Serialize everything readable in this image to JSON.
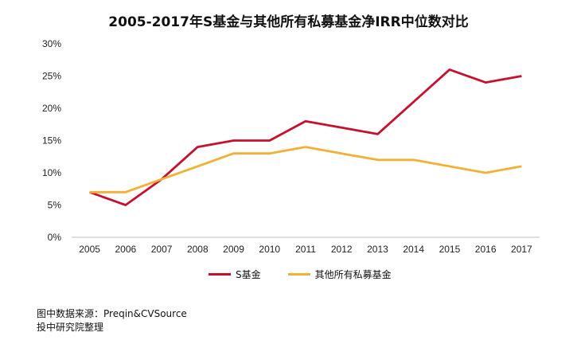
{
  "title": "2005-2017年S基金与其他所有私募基金净IRR中位数对比",
  "chart_data": {
    "type": "line",
    "title": "2005-2017年S基金与其他所有私募基金净IRR中位数对比",
    "xlabel": "",
    "ylabel": "",
    "categories": [
      "2005",
      "2006",
      "2007",
      "2008",
      "2009",
      "2010",
      "2011",
      "2012",
      "2013",
      "2014",
      "2015",
      "2016",
      "2017"
    ],
    "ylim": [
      0,
      30
    ],
    "yticks": [
      "0%",
      "5%",
      "10%",
      "15%",
      "20%",
      "25%",
      "30%"
    ],
    "grid": false,
    "legend_position": "bottom",
    "series": [
      {
        "name": "S基金",
        "color": "#c8102e",
        "values": [
          7,
          5,
          9,
          14,
          15,
          15,
          18,
          17,
          16,
          21,
          26,
          24,
          25
        ]
      },
      {
        "name": "其他所有私募基金",
        "color": "#f2b134",
        "values": [
          7,
          7,
          9,
          11,
          13,
          13,
          14,
          13,
          12,
          12,
          11,
          10,
          11
        ]
      }
    ]
  },
  "source": {
    "line1": "图中数据来源：Preqin&CVSource",
    "line2": "投中研究院整理"
  }
}
